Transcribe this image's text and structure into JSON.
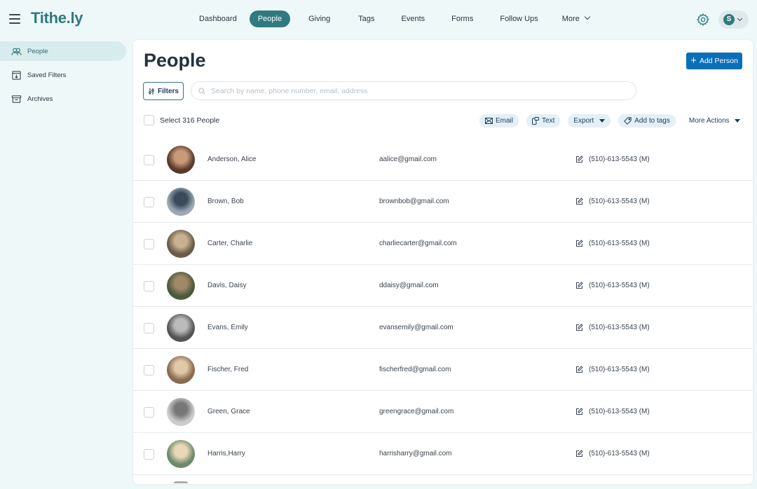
{
  "app": {
    "logo": "Tithe.ly"
  },
  "nav": {
    "items": [
      {
        "label": "Dashboard"
      },
      {
        "label": "People",
        "active": true
      },
      {
        "label": "Giving"
      },
      {
        "label": "Tags"
      },
      {
        "label": "Events"
      },
      {
        "label": "Forms"
      },
      {
        "label": "Follow Ups"
      },
      {
        "label": "More"
      }
    ]
  },
  "user": {
    "initial": "S"
  },
  "sidebar": {
    "items": [
      {
        "label": "People",
        "icon": "people-icon",
        "active": true
      },
      {
        "label": "Saved Filters",
        "icon": "saved-filters-icon"
      },
      {
        "label": "Archives",
        "icon": "archive-icon"
      }
    ]
  },
  "main": {
    "title": "People",
    "add_button": "Add Person",
    "filters_button": "Filters",
    "search_placeholder": "Search by name, phone number, email, address",
    "select_all": "Select 316 People",
    "actions": {
      "email": "Email",
      "text": "Text",
      "export": "Export",
      "add_to_tags": "Add to tags",
      "more_actions": "More Actions"
    },
    "people": [
      {
        "name": "Anderson, Alice",
        "email": "aalice@gmail.com",
        "phone": "(510)-613-5543 (M)"
      },
      {
        "name": "Brown, Bob",
        "email": "brownbob@gmail.com",
        "phone": "(510)-613-5543 (M)"
      },
      {
        "name": "Carter, Charlie",
        "email": "charliecarter@gmail.com",
        "phone": "(510)-613-5543 (M)"
      },
      {
        "name": "Davis, Daisy",
        "email": "ddaisy@gmail.com",
        "phone": "(510)-613-5543 (M)"
      },
      {
        "name": "Evans, Emily",
        "email": "evansemily@gmail.com",
        "phone": "(510)-613-5543 (M)"
      },
      {
        "name": "Fischer, Fred",
        "email": "fischerfred@gmail.com",
        "phone": "(510)-613-5543 (M)"
      },
      {
        "name": "Green, Grace",
        "email": "greengrace@gmail.com",
        "phone": "(510)-613-5543 (M)"
      },
      {
        "name": "Harris,Harry",
        "email": "harrisharry@gmail.com",
        "phone": "(510)-613-5543 (M)"
      }
    ]
  },
  "colors": {
    "brand": "#2f7a80",
    "primary_button": "#0b6fb8",
    "background": "#eef8f8"
  }
}
